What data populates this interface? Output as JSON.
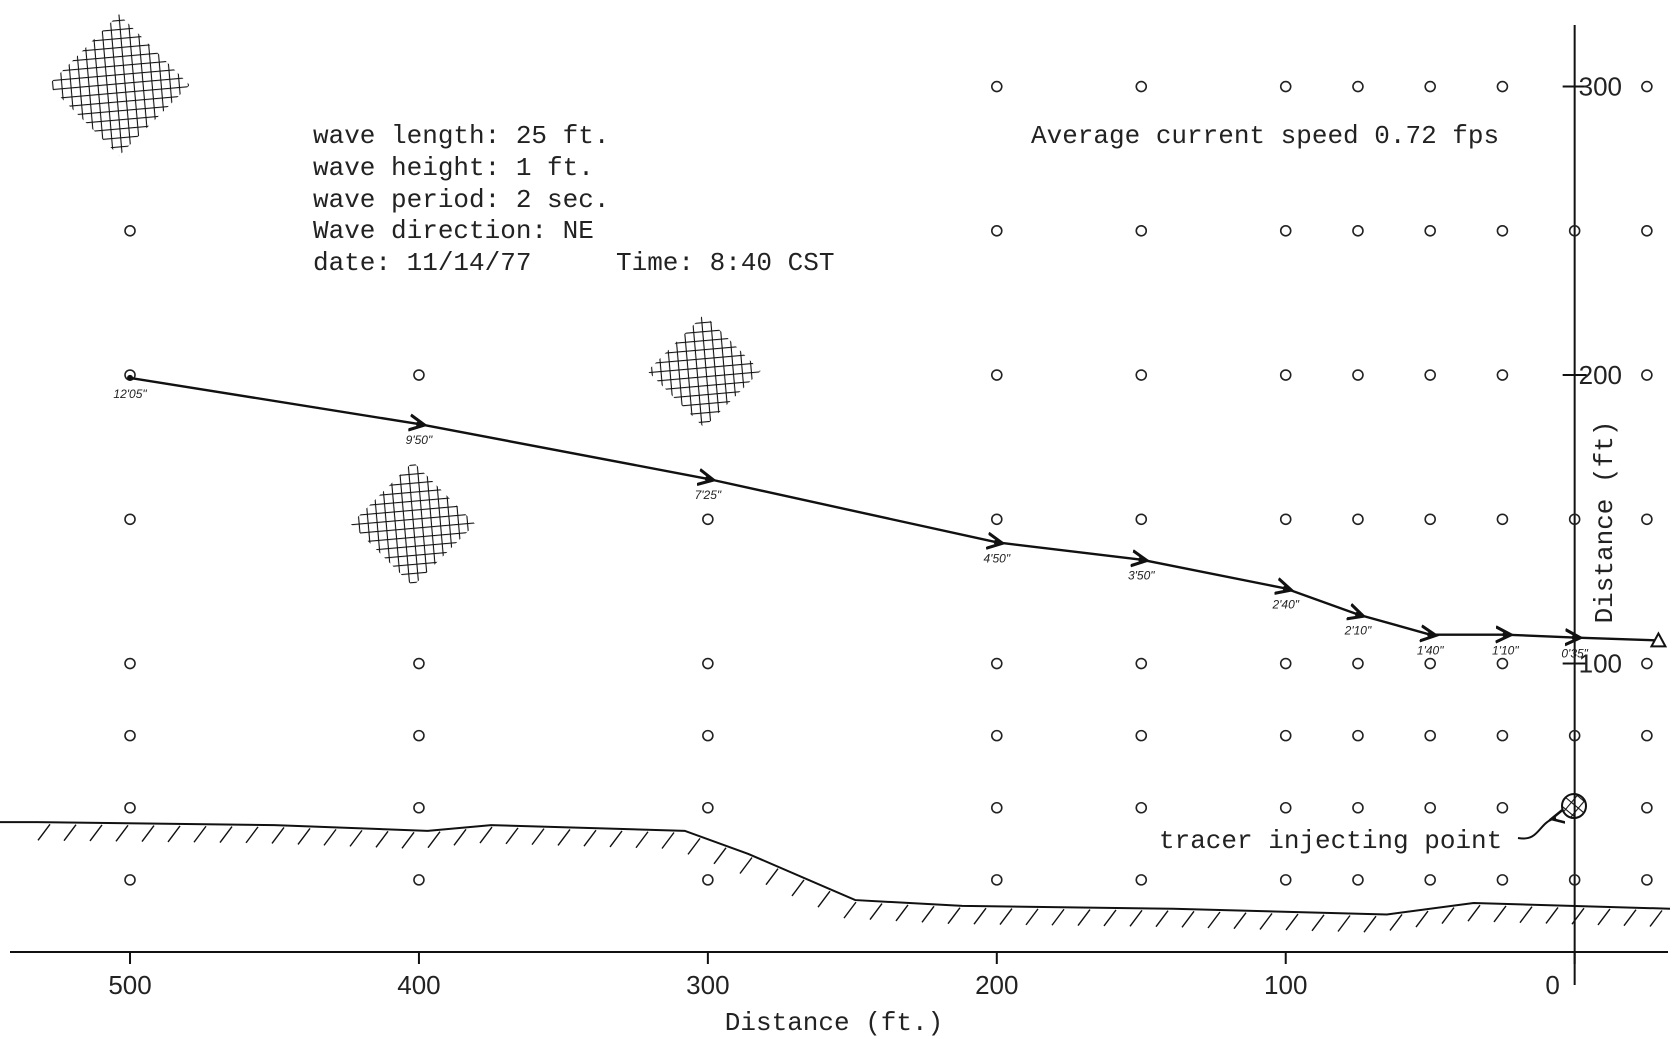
{
  "chart_data": {
    "type": "line",
    "annotations": [
      "wave length: 25 ft.",
      "wave height: 1 ft.",
      "wave period: 2 sec.",
      "Wave direction: NE",
      "date: 11/14/77",
      "Time: 8:40 CST"
    ],
    "subtitle": "Average current speed 0.72 fps",
    "marker_label": "tracer injecting point",
    "x_label": "Distance (ft.)",
    "y_label": "Distance (ft)",
    "xlim": [
      545,
      -33
    ],
    "ylim": [
      0,
      330
    ],
    "xticks": [
      500,
      400,
      300,
      200,
      100,
      0
    ],
    "yticks": [
      100,
      200,
      300
    ],
    "color": "#111111",
    "series": [
      {
        "x": [
          -29,
          0,
          24,
          50,
          75,
          100,
          150,
          200,
          300,
          400,
          500
        ],
        "values": [
          108,
          109,
          110,
          110,
          117,
          126,
          136,
          142,
          164,
          183,
          199
        ],
        "time_labels": [
          null,
          "0'35\"",
          "1'10\"",
          "1'40\"",
          "2'10\"",
          "2'40\"",
          "3'50\"",
          "4'50\"",
          "7'25\"",
          "9'50\"",
          "12'05\""
        ]
      }
    ],
    "shoreline": {
      "x": [
        545,
        532,
        450,
        397,
        375,
        308,
        286,
        249,
        212,
        139,
        65,
        35,
        -33
      ],
      "values": [
        45,
        45,
        44,
        42,
        44,
        42,
        34,
        18,
        16,
        15,
        13,
        17,
        15
      ]
    },
    "station_rows": [
      {
        "y": 300,
        "x": [
          200,
          150,
          100,
          75,
          50,
          25,
          -25
        ]
      },
      {
        "y": 250,
        "x": [
          500,
          200,
          150,
          100,
          75,
          50,
          25,
          0,
          -25
        ]
      },
      {
        "y": 200,
        "x": [
          500,
          400,
          200,
          150,
          100,
          75,
          50,
          25,
          -25
        ]
      },
      {
        "y": 150,
        "x": [
          500,
          300,
          200,
          150,
          100,
          75,
          50,
          25,
          0,
          -25
        ]
      },
      {
        "y": 100,
        "x": [
          500,
          400,
          300,
          200,
          150,
          100,
          75,
          50,
          25,
          -25
        ]
      },
      {
        "y": 75,
        "x": [
          500,
          400,
          300,
          200,
          150,
          100,
          75,
          50,
          25,
          0,
          -25
        ]
      },
      {
        "y": 50,
        "x": [
          500,
          400,
          300,
          200,
          150,
          100,
          75,
          50,
          25,
          -25
        ]
      },
      {
        "y": 25,
        "x": [
          500,
          400,
          300,
          200,
          150,
          100,
          75,
          50,
          25,
          0,
          -25
        ]
      }
    ]
  }
}
